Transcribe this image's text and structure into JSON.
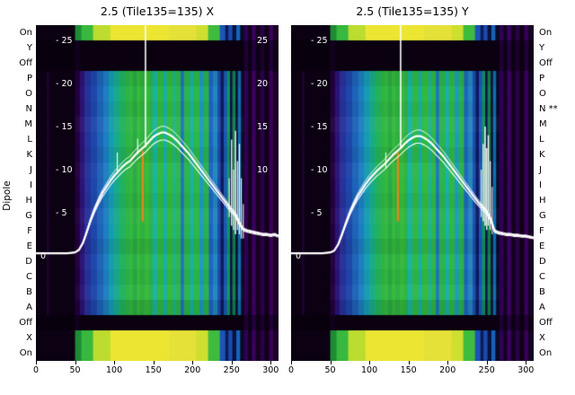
{
  "figure": {
    "ylabel": "Dipole",
    "bg": "#ffffff",
    "text_color": "#000000",
    "line_color": "#ffffff"
  },
  "panels": [
    {
      "title": "2.5 (Tile135=135) X",
      "inner_left_ticks": [
        {
          "p": 25,
          "label": "- 25"
        },
        {
          "p": 20,
          "label": "- 20"
        },
        {
          "p": 15,
          "label": "- 15"
        },
        {
          "p": 10,
          "label": "- 10"
        },
        {
          "p": 5,
          "label": "- 5"
        },
        {
          "p": 0,
          "label": "0"
        }
      ],
      "inner_right_ticks": [
        {
          "p": 25,
          "label": "25"
        },
        {
          "p": 20,
          "label": "20"
        },
        {
          "p": 15,
          "label": "15"
        },
        {
          "p": 10,
          "label": "10"
        }
      ],
      "x_tick_labels": [
        "0",
        "50",
        "100",
        "150",
        "200",
        "250",
        "300"
      ]
    },
    {
      "title": "2.5 (Tile135=135) Y",
      "inner_left_ticks": [
        {
          "p": 25,
          "label": "- 25"
        },
        {
          "p": 20,
          "label": "- 20"
        },
        {
          "p": 15,
          "label": "- 15"
        },
        {
          "p": 10,
          "label": "- 10"
        },
        {
          "p": 5,
          "label": "- 5"
        },
        {
          "p": 0,
          "label": "0"
        }
      ],
      "inner_right_ticks": [],
      "x_tick_labels": [
        "0",
        "50",
        "100",
        "150",
        "200",
        "250",
        "300"
      ]
    }
  ],
  "chart_data": {
    "type": "heatmap",
    "overlay": "line",
    "title_x": "2.5 (Tile135=135) X",
    "title_y": "2.5 (Tile135=135) Y",
    "ylabel": "Dipole",
    "x_range": [
      0,
      310
    ],
    "x_ticks": [
      0,
      50,
      100,
      150,
      200,
      250,
      300
    ],
    "power_ticks": [
      0,
      5,
      10,
      15,
      20,
      25
    ],
    "rows": [
      {
        "left": "On",
        "right": "On",
        "type": "on",
        "shade": 1
      },
      {
        "left": "Y",
        "right": "Y",
        "type": "off",
        "shade": 1
      },
      {
        "left": "Off",
        "right": "Off",
        "type": "off",
        "shade": 1
      },
      {
        "left": "P",
        "right": "P",
        "type": "active",
        "shade": 0.94
      },
      {
        "left": "O",
        "right": "O",
        "type": "active",
        "shade": 1
      },
      {
        "left": "N",
        "right": "N **",
        "type": "active",
        "shade": 0.96
      },
      {
        "left": "M",
        "right": "M",
        "type": "active",
        "shade": 1.05
      },
      {
        "left": "L",
        "right": "L",
        "type": "active",
        "shade": 1
      },
      {
        "left": "K",
        "right": "K",
        "type": "active",
        "shade": 0.95
      },
      {
        "left": "J",
        "right": "J",
        "type": "active",
        "shade": 1.03
      },
      {
        "left": "I",
        "right": "I",
        "type": "active",
        "shade": 1
      },
      {
        "left": "H",
        "right": "H",
        "type": "active",
        "shade": 0.96
      },
      {
        "left": "G",
        "right": "G",
        "type": "active",
        "shade": 1.04
      },
      {
        "left": "F",
        "right": "F",
        "type": "active",
        "shade": 1
      },
      {
        "left": "E",
        "right": "E",
        "type": "active",
        "shade": 0.93
      },
      {
        "left": "D",
        "right": "D",
        "type": "active",
        "shade": 1.02
      },
      {
        "left": "C",
        "right": "C",
        "type": "active",
        "shade": 0.97
      },
      {
        "left": "B",
        "right": "B",
        "type": "active",
        "shade": 1.03
      },
      {
        "left": "A",
        "right": "A",
        "type": "active",
        "shade": 0.9
      },
      {
        "left": "Off",
        "right": "Off",
        "type": "off",
        "shade": 1
      },
      {
        "left": "X",
        "right": "X",
        "type": "on",
        "shade": 1
      },
      {
        "left": "On",
        "right": "On",
        "type": "on",
        "shade": 1
      }
    ],
    "row_types": {
      "active": [
        [
          0,
          14,
          "#0c0013"
        ],
        [
          14,
          17,
          "#1c002e"
        ],
        [
          17,
          50,
          "#0c0013"
        ],
        [
          50,
          56,
          "#23003f"
        ],
        [
          56,
          62,
          "#2d1374"
        ],
        [
          62,
          70,
          "#27329b"
        ],
        [
          70,
          78,
          "#1e47ac"
        ],
        [
          78,
          86,
          "#1f63b8"
        ],
        [
          86,
          93,
          "#1d7fc0"
        ],
        [
          93,
          100,
          "#169bb4"
        ],
        [
          100,
          107,
          "#18ab88"
        ],
        [
          107,
          113,
          "#20b25f"
        ],
        [
          113,
          119,
          "#2ab44b"
        ],
        [
          119,
          124,
          "#33b83e"
        ],
        [
          124,
          129,
          "#2aa947"
        ],
        [
          129,
          133,
          "#36bc39"
        ],
        [
          133,
          139,
          "#2fb040"
        ],
        [
          139,
          145,
          "#35ba3b"
        ],
        [
          145,
          149,
          "#2cb248"
        ],
        [
          149,
          155,
          "#1ab49e"
        ],
        [
          155,
          163,
          "#2fb843"
        ],
        [
          163,
          167,
          "#16aeb6"
        ],
        [
          167,
          175,
          "#31ba3f"
        ],
        [
          175,
          179,
          "#20b48a"
        ],
        [
          179,
          185,
          "#2db74a"
        ],
        [
          185,
          189,
          "#1e70c6"
        ],
        [
          189,
          197,
          "#2bb44d"
        ],
        [
          197,
          202,
          "#19b2a2"
        ],
        [
          202,
          209,
          "#2eb746"
        ],
        [
          209,
          214,
          "#1b9ac2"
        ],
        [
          214,
          221,
          "#29b14f"
        ],
        [
          221,
          226,
          "#1d64c2"
        ],
        [
          226,
          232,
          "#2386be"
        ],
        [
          232,
          236,
          "#1e4cae"
        ],
        [
          236,
          240,
          "#0d1a5e"
        ],
        [
          240,
          244,
          "#1a56b6"
        ],
        [
          244,
          248,
          "#109360"
        ],
        [
          248,
          251,
          "#0a1342"
        ],
        [
          251,
          255,
          "#12814c"
        ],
        [
          255,
          258,
          "#081031"
        ],
        [
          258,
          262,
          "#106cae"
        ],
        [
          262,
          266,
          "#0a0926"
        ],
        [
          266,
          271,
          "#2f0053"
        ],
        [
          271,
          276,
          "#130020"
        ],
        [
          276,
          281,
          "#3b0062"
        ],
        [
          281,
          287,
          "#150021"
        ],
        [
          287,
          292,
          "#2b0049"
        ],
        [
          292,
          298,
          "#110019"
        ],
        [
          298,
          303,
          "#390059"
        ],
        [
          303,
          310,
          "#170022"
        ]
      ],
      "on": [
        [
          0,
          50,
          "#0c0013"
        ],
        [
          50,
          58,
          "#1f8c35"
        ],
        [
          58,
          73,
          "#38b83f"
        ],
        [
          73,
          95,
          "#bcdc30"
        ],
        [
          95,
          170,
          "#ece633"
        ],
        [
          170,
          205,
          "#e6e138"
        ],
        [
          205,
          220,
          "#cfdf30"
        ],
        [
          220,
          235,
          "#3fbc3e"
        ],
        [
          235,
          242,
          "#1c54ba"
        ],
        [
          242,
          246,
          "#0c1b52"
        ],
        [
          246,
          251,
          "#1a4ab2"
        ],
        [
          251,
          256,
          "#0a1239"
        ],
        [
          256,
          261,
          "#1562ba"
        ],
        [
          261,
          266,
          "#0a0a25"
        ],
        [
          266,
          271,
          "#2f0053"
        ],
        [
          271,
          276,
          "#130020"
        ],
        [
          276,
          281,
          "#3b0062"
        ],
        [
          281,
          287,
          "#150021"
        ],
        [
          287,
          292,
          "#2b0049"
        ],
        [
          292,
          298,
          "#110019"
        ],
        [
          298,
          303,
          "#390059"
        ],
        [
          303,
          310,
          "#170022"
        ]
      ],
      "off": [
        [
          0,
          50,
          "#09000d"
        ],
        [
          50,
          56,
          "#12001f"
        ],
        [
          56,
          266,
          "#0a000f"
        ],
        [
          266,
          271,
          "#1d0034"
        ],
        [
          271,
          276,
          "#0d0014"
        ],
        [
          276,
          281,
          "#240040"
        ],
        [
          281,
          287,
          "#0e0015"
        ],
        [
          287,
          292,
          "#1a002e"
        ],
        [
          292,
          298,
          "#0c0011"
        ],
        [
          298,
          303,
          "#22003b"
        ],
        [
          303,
          310,
          "#0e0015"
        ]
      ]
    },
    "series": {
      "x": [
        0,
        10,
        20,
        30,
        40,
        50,
        55,
        60,
        65,
        70,
        75,
        80,
        85,
        90,
        95,
        100,
        105,
        110,
        115,
        120,
        125,
        130,
        135,
        140,
        145,
        150,
        155,
        160,
        165,
        170,
        175,
        180,
        185,
        190,
        195,
        200,
        205,
        210,
        215,
        220,
        225,
        230,
        235,
        240,
        245,
        250,
        255,
        260,
        265,
        270,
        275,
        280,
        285,
        290,
        295,
        300,
        305,
        310
      ],
      "panels": [
        {
          "name": "X",
          "y": [
            0.3,
            0.3,
            0.3,
            0.3,
            0.3,
            0.4,
            0.7,
            1.5,
            2.8,
            4.2,
            5.4,
            6.4,
            7.3,
            8.0,
            8.7,
            9.3,
            9.8,
            10.3,
            10.7,
            11.0,
            11.5,
            12.0,
            12.4,
            12.8,
            13.3,
            13.8,
            14.1,
            14.3,
            14.3,
            14.1,
            13.8,
            13.4,
            12.9,
            12.4,
            11.9,
            11.3,
            10.7,
            10.1,
            9.5,
            8.9,
            8.3,
            7.7,
            7.1,
            6.5,
            5.9,
            5.3,
            4.8,
            3.8,
            3.1,
            2.9,
            2.8,
            2.7,
            2.6,
            2.5,
            2.5,
            2.4,
            2.5,
            2.3
          ],
          "spikes": [
            [
              104,
              9.5,
              12,
              1.1
            ],
            [
              130,
              11.8,
              13.6,
              1.1
            ],
            [
              140,
              12.6,
              27.8,
              1.6
            ],
            [
              136.5,
              4,
              12.2,
              2.4,
              "#e0891a"
            ],
            [
              247,
              4.5,
              9,
              1.1
            ],
            [
              250,
              3.5,
              13.5,
              1.3
            ],
            [
              252.5,
              3,
              10,
              1.1
            ],
            [
              255,
              2.5,
              14.5,
              1.4
            ],
            [
              257.5,
              3,
              11,
              1.1
            ],
            [
              260,
              2.5,
              13,
              1.3
            ],
            [
              262.5,
              2,
              9,
              1.1
            ],
            [
              265,
              2,
              6,
              1.0
            ]
          ]
        },
        {
          "name": "Y",
          "y": [
            0.3,
            0.3,
            0.3,
            0.3,
            0.3,
            0.4,
            0.6,
            1.3,
            2.5,
            3.8,
            5.0,
            6.0,
            6.9,
            7.6,
            8.3,
            8.9,
            9.4,
            9.9,
            10.3,
            10.7,
            11.2,
            11.7,
            12.1,
            12.5,
            13.0,
            13.4,
            13.7,
            13.9,
            13.9,
            13.7,
            13.4,
            13.0,
            12.5,
            12.0,
            11.5,
            10.9,
            10.3,
            9.7,
            9.1,
            8.5,
            7.9,
            7.3,
            6.7,
            6.1,
            5.6,
            5.1,
            4.3,
            2.9,
            2.7,
            2.6,
            2.5,
            2.5,
            2.4,
            2.4,
            2.3,
            2.3,
            2.2,
            2.1
          ],
          "spikes": [
            [
              121,
              10.2,
              12,
              1.0
            ],
            [
              140,
              12.4,
              27.8,
              1.6
            ],
            [
              136.5,
              4,
              12,
              2.4,
              "#e0891a"
            ],
            [
              243,
              4.5,
              10,
              1.1
            ],
            [
              245.5,
              4,
              13,
              1.3
            ],
            [
              248,
              3.5,
              15,
              1.5
            ],
            [
              250,
              3,
              12.5,
              1.3
            ],
            [
              252,
              3.5,
              14,
              1.4
            ],
            [
              254.5,
              3,
              11,
              1.2
            ],
            [
              257,
              2.5,
              8,
              1.0
            ]
          ]
        }
      ]
    }
  }
}
